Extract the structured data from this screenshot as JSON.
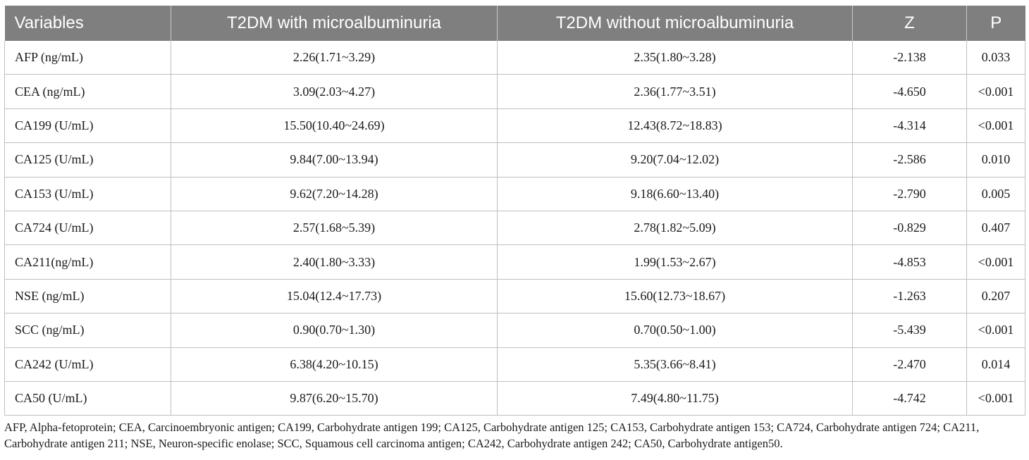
{
  "table": {
    "headers": [
      "Variables",
      "T2DM with microalbuminuria",
      "T2DM without microalbuminuria",
      "Z",
      "P"
    ],
    "rows": [
      [
        "AFP (ng/mL)",
        "2.26(1.71~3.29)",
        "2.35(1.80~3.28)",
        "-2.138",
        "0.033"
      ],
      [
        "CEA (ng/mL)",
        "3.09(2.03~4.27)",
        "2.36(1.77~3.51)",
        "-4.650",
        "<0.001"
      ],
      [
        "CA199 (U/mL)",
        "15.50(10.40~24.69)",
        "12.43(8.72~18.83)",
        "-4.314",
        "<0.001"
      ],
      [
        "CA125 (U/mL)",
        "9.84(7.00~13.94)",
        "9.20(7.04~12.02)",
        "-2.586",
        "0.010"
      ],
      [
        "CA153 (U/mL)",
        "9.62(7.20~14.28)",
        "9.18(6.60~13.40)",
        "-2.790",
        "0.005"
      ],
      [
        "CA724 (U/mL)",
        "2.57(1.68~5.39)",
        "2.78(1.82~5.09)",
        "-0.829",
        "0.407"
      ],
      [
        "CA211(ng/mL)",
        "2.40(1.80~3.33)",
        "1.99(1.53~2.67)",
        "-4.853",
        "<0.001"
      ],
      [
        "NSE (ng/mL)",
        "15.04(12.4~17.73)",
        "15.60(12.73~18.67)",
        "-1.263",
        "0.207"
      ],
      [
        "SCC (ng/mL)",
        "0.90(0.70~1.30)",
        "0.70(0.50~1.00)",
        "-5.439",
        "<0.001"
      ],
      [
        "CA242 (U/mL)",
        "6.38(4.20~10.15)",
        "5.35(3.66~8.41)",
        "-2.470",
        "0.014"
      ],
      [
        "CA50 (U/mL)",
        "9.87(6.20~15.70)",
        "7.49(4.80~11.75)",
        "-4.742",
        "<0.001"
      ]
    ]
  },
  "footnote": "AFP, Alpha-fetoprotein; CEA, Carcinoembryonic antigen; CA199, Carbohydrate antigen 199; CA125, Carbohydrate antigen 125; CA153, Carbohydrate antigen 153; CA724, Carbohydrate antigen 724; CA211, Carbohydrate antigen 211; NSE, Neuron-specific enolase; SCC, Squamous cell carcinoma antigen; CA242, Carbohydrate antigen 242; CA50, Carbohydrate antigen50."
}
